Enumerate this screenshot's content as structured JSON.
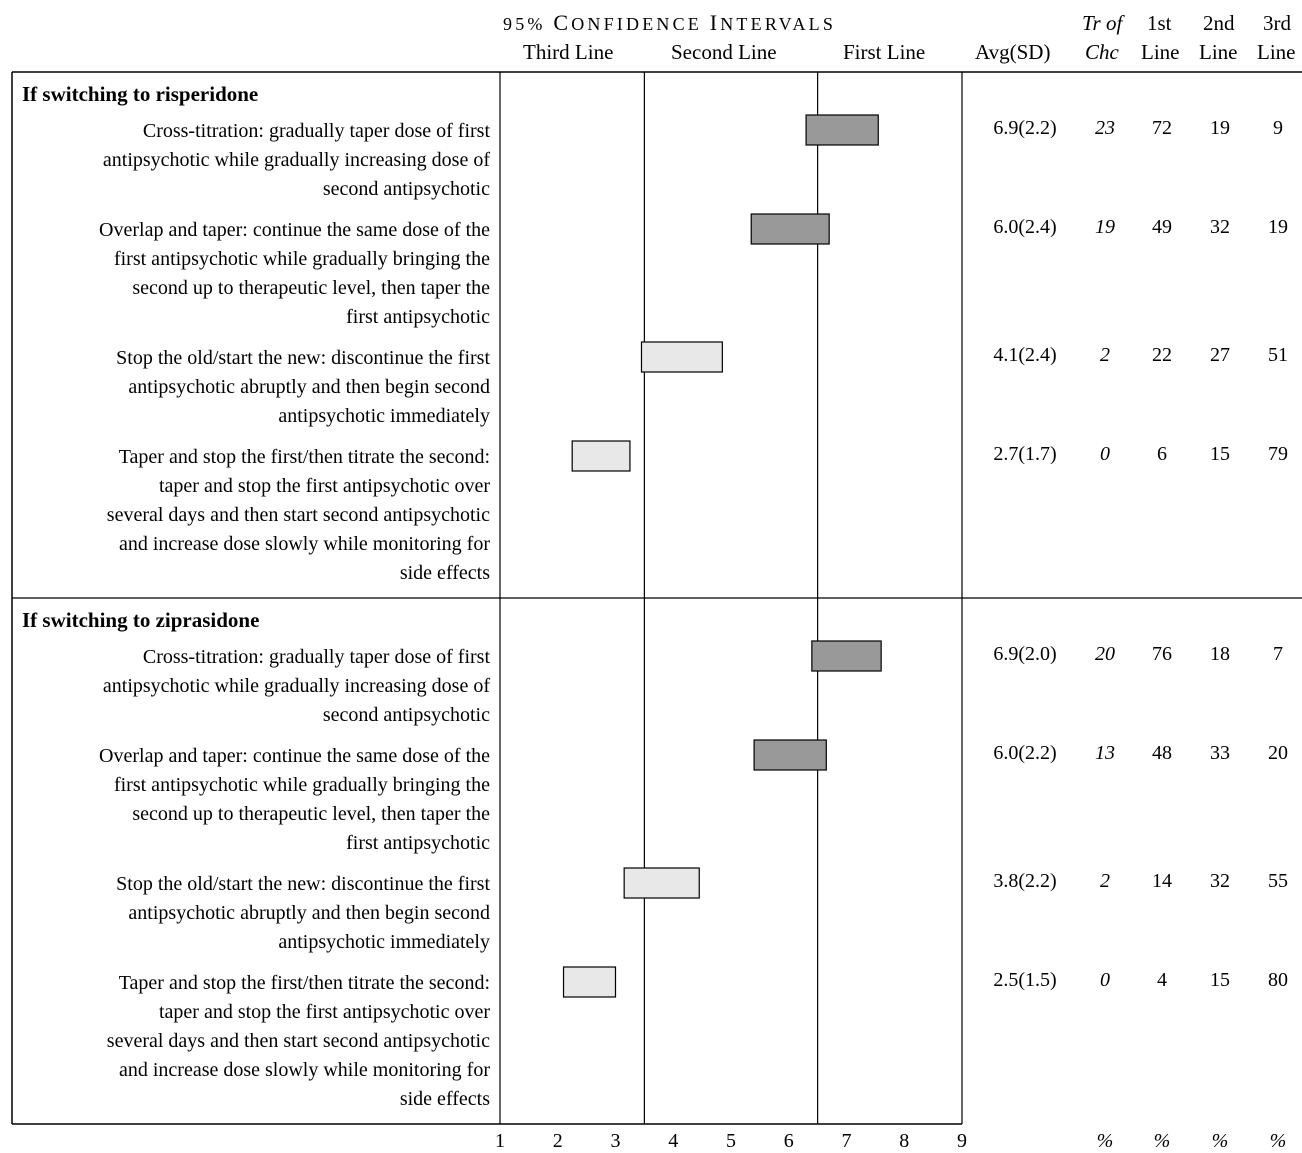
{
  "header": {
    "ci_title_parts": [
      "95%",
      "C",
      "ONFIDENCE",
      "I",
      "NTERVALS"
    ],
    "ci_labels": [
      "Third Line",
      "Second Line",
      "First Line"
    ],
    "col_avg": "Avg(SD)",
    "col_tr_top": "Tr of",
    "col_tr_bottom": "Chc",
    "col_1_top": "1st",
    "col_1_bottom": "Line",
    "col_2_top": "2nd",
    "col_2_bottom": "Line",
    "col_3_top": "3rd",
    "col_3_bottom": "Line"
  },
  "chart_data": {
    "type": "table",
    "xlim": [
      1,
      9
    ],
    "x_ticks": [
      1,
      2,
      3,
      4,
      5,
      6,
      7,
      8,
      9
    ],
    "percent_marks": [
      "%",
      "%",
      "%",
      "%"
    ],
    "sections": [
      {
        "title": "If switching to risperidone",
        "items": [
          {
            "label": [
              "Cross-titration: gradually taper dose of first",
              "antipsychotic while gradually increasing dose of",
              "second antipsychotic"
            ],
            "ci": [
              6.3,
              7.55
            ],
            "tier": "first",
            "avg": "6.9(2.2)",
            "tr": "23",
            "first": "72",
            "second": "19",
            "third": "9"
          },
          {
            "label": [
              "Overlap and taper: continue the same dose of the",
              "first antipsychotic while gradually bringing the",
              "second up to therapeutic level, then taper the",
              "first antipsychotic"
            ],
            "ci": [
              5.35,
              6.7
            ],
            "tier": "first",
            "avg": "6.0(2.4)",
            "tr": "19",
            "first": "49",
            "second": "32",
            "third": "19"
          },
          {
            "label": [
              "Stop the old/start the new: discontinue the first",
              "antipsychotic abruptly and then begin second",
              "antipsychotic immediately"
            ],
            "ci": [
              3.45,
              4.85
            ],
            "tier": "second",
            "avg": "4.1(2.4)",
            "tr": "2",
            "first": "22",
            "second": "27",
            "third": "51"
          },
          {
            "label": [
              "Taper and stop the first/then titrate the second:",
              "taper and stop the first antipsychotic over",
              "several days and then start second antipsychotic",
              "and increase dose slowly while monitoring for",
              "side effects"
            ],
            "ci": [
              2.25,
              3.25
            ],
            "tier": "third",
            "avg": "2.7(1.7)",
            "tr": "0",
            "first": "6",
            "second": "15",
            "third": "79"
          }
        ]
      },
      {
        "title": "If switching to ziprasidone",
        "items": [
          {
            "label": [
              "Cross-titration: gradually taper dose of first",
              "antipsychotic while gradually increasing dose of",
              "second antipsychotic"
            ],
            "ci": [
              6.4,
              7.6
            ],
            "tier": "first",
            "avg": "6.9(2.0)",
            "tr": "20",
            "first": "76",
            "second": "18",
            "third": "7"
          },
          {
            "label": [
              "Overlap and taper: continue the same dose of the",
              "first antipsychotic while gradually bringing the",
              "second up to therapeutic level, then taper the",
              "first antipsychotic"
            ],
            "ci": [
              5.4,
              6.65
            ],
            "tier": "first",
            "avg": "6.0(2.2)",
            "tr": "13",
            "first": "48",
            "second": "33",
            "third": "20"
          },
          {
            "label": [
              "Stop the old/start the new: discontinue the first",
              "antipsychotic abruptly and then begin second",
              "antipsychotic immediately"
            ],
            "ci": [
              3.15,
              4.45
            ],
            "tier": "second",
            "avg": "3.8(2.2)",
            "tr": "2",
            "first": "14",
            "second": "32",
            "third": "55"
          },
          {
            "label": [
              "Taper and stop the first/then titrate the second:",
              "taper and stop the first antipsychotic over",
              "several days and then start second antipsychotic",
              "and increase dose slowly while monitoring for",
              "side effects"
            ],
            "ci": [
              2.1,
              3.0
            ],
            "tier": "third",
            "avg": "2.5(1.5)",
            "tr": "0",
            "first": "4",
            "second": "15",
            "third": "80"
          }
        ]
      }
    ]
  },
  "colors": {
    "first_tier_fill": "#999999",
    "lower_tier_fill": "#e8e8e8",
    "stroke": "#000000"
  }
}
